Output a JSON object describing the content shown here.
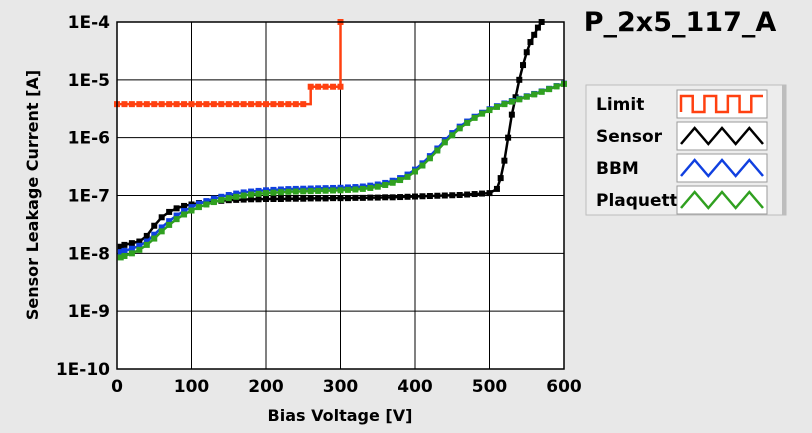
{
  "chart_data": {
    "type": "line",
    "title": "P_2x5_117_A",
    "xlabel": "Bias Voltage [V]",
    "ylabel": "Sensor Leakage Current [A]",
    "xlim": [
      0,
      600
    ],
    "ylim": [
      1e-10,
      0.0001
    ],
    "yscale": "log",
    "grid": true,
    "legend_position": "right",
    "x_ticks": [
      0,
      100,
      200,
      300,
      400,
      500,
      600
    ],
    "x_tick_labels": [
      "0",
      "100",
      "200",
      "300",
      "400",
      "500",
      "600"
    ],
    "y_ticks": [
      1e-10,
      1e-09,
      1e-08,
      1e-07,
      1e-06,
      1e-05,
      0.0001
    ],
    "y_tick_labels": [
      "1E-10",
      "1E-9",
      "1E-8",
      "1E-7",
      "1E-6",
      "1E-5",
      "1E-4"
    ],
    "series": [
      {
        "name": "Limit",
        "color": "#ff4010",
        "step": true,
        "x": [
          0,
          10,
          20,
          30,
          40,
          50,
          60,
          70,
          80,
          90,
          100,
          110,
          120,
          130,
          140,
          150,
          160,
          170,
          180,
          190,
          200,
          210,
          220,
          230,
          240,
          250,
          260,
          270,
          280,
          290,
          300,
          300
        ],
        "y": [
          3.8e-06,
          3.8e-06,
          3.8e-06,
          3.8e-06,
          3.8e-06,
          3.8e-06,
          3.8e-06,
          3.8e-06,
          3.8e-06,
          3.8e-06,
          3.8e-06,
          3.8e-06,
          3.8e-06,
          3.8e-06,
          3.8e-06,
          3.8e-06,
          3.8e-06,
          3.8e-06,
          3.8e-06,
          3.8e-06,
          3.8e-06,
          3.8e-06,
          3.8e-06,
          3.8e-06,
          3.8e-06,
          3.8e-06,
          7.6e-06,
          7.6e-06,
          7.6e-06,
          7.6e-06,
          7.6e-06,
          0.0001
        ]
      },
      {
        "name": "Sensor",
        "color": "#000000",
        "step": false,
        "x": [
          5,
          10,
          20,
          30,
          40,
          50,
          60,
          70,
          80,
          90,
          100,
          110,
          120,
          130,
          140,
          150,
          160,
          170,
          180,
          190,
          200,
          210,
          220,
          230,
          240,
          250,
          260,
          270,
          280,
          290,
          300,
          310,
          320,
          330,
          340,
          350,
          360,
          370,
          380,
          390,
          400,
          410,
          420,
          430,
          440,
          450,
          460,
          470,
          480,
          490,
          500,
          510,
          515,
          520,
          525,
          530,
          535,
          540,
          545,
          550,
          555,
          560,
          565,
          570
        ],
        "y": [
          1.3e-08,
          1.4e-08,
          1.5e-08,
          1.6e-08,
          2e-08,
          3e-08,
          4.2e-08,
          5.2e-08,
          6e-08,
          6.6e-08,
          7e-08,
          7.4e-08,
          7.7e-08,
          7.9e-08,
          8.1e-08,
          8.3e-08,
          8.4e-08,
          8.5e-08,
          8.6e-08,
          8.6e-08,
          8.7e-08,
          8.7e-08,
          8.7e-08,
          8.8e-08,
          8.8e-08,
          8.8e-08,
          8.9e-08,
          8.9e-08,
          8.9e-08,
          9e-08,
          9e-08,
          9e-08,
          9.1e-08,
          9.1e-08,
          9.2e-08,
          9.2e-08,
          9.3e-08,
          9.3e-08,
          9.4e-08,
          9.5e-08,
          9.6e-08,
          9.7e-08,
          9.8e-08,
          9.9e-08,
          1e-07,
          1.01e-07,
          1.02e-07,
          1.04e-07,
          1.06e-07,
          1.08e-07,
          1.1e-07,
          1.3e-07,
          2e-07,
          4e-07,
          1e-06,
          2.5e-06,
          5e-06,
          1e-05,
          1.8e-05,
          3e-05,
          4.5e-05,
          6e-05,
          8e-05,
          0.0001
        ]
      },
      {
        "name": "BBM",
        "color": "#1040e0",
        "step": false,
        "x": [
          5,
          10,
          20,
          30,
          40,
          50,
          60,
          70,
          80,
          90,
          100,
          110,
          120,
          130,
          140,
          150,
          160,
          170,
          180,
          190,
          200,
          210,
          220,
          230,
          240,
          250,
          260,
          270,
          280,
          290,
          300,
          310,
          320,
          330,
          340,
          350,
          360,
          370,
          380,
          390,
          400,
          410,
          420,
          430,
          440,
          450,
          460,
          470,
          480,
          490,
          500,
          510,
          520,
          530,
          540,
          550,
          560,
          570,
          580,
          590,
          600
        ],
        "y": [
          1.05e-08,
          1.1e-08,
          1.2e-08,
          1.35e-08,
          1.6e-08,
          2.1e-08,
          2.8e-08,
          3.6e-08,
          4.5e-08,
          5.4e-08,
          6.3e-08,
          7.2e-08,
          8e-08,
          8.8e-08,
          9.5e-08,
          1.02e-07,
          1.08e-07,
          1.13e-07,
          1.17e-07,
          1.2e-07,
          1.23e-07,
          1.25e-07,
          1.27e-07,
          1.29e-07,
          1.3e-07,
          1.31e-07,
          1.32e-07,
          1.33e-07,
          1.34e-07,
          1.35e-07,
          1.36e-07,
          1.38e-07,
          1.4e-07,
          1.43e-07,
          1.48e-07,
          1.55e-07,
          1.65e-07,
          1.8e-07,
          2e-07,
          2.3e-07,
          2.8e-07,
          3.6e-07,
          4.8e-07,
          6.5e-07,
          9e-07,
          1.2e-06,
          1.55e-06,
          1.9e-06,
          2.3e-06,
          2.7e-06,
          3.1e-06,
          3.5e-06,
          3.9e-06,
          4.3e-06,
          4.7e-06,
          5.2e-06,
          5.7e-06,
          6.3e-06,
          7e-06,
          7.8e-06,
          8.6e-06
        ]
      },
      {
        "name": "Plaquette",
        "color": "#30a020",
        "step": false,
        "x": [
          5,
          10,
          20,
          30,
          40,
          50,
          60,
          70,
          80,
          90,
          100,
          110,
          120,
          130,
          140,
          150,
          160,
          170,
          180,
          190,
          200,
          210,
          220,
          230,
          240,
          250,
          260,
          270,
          280,
          290,
          300,
          310,
          320,
          330,
          340,
          350,
          360,
          370,
          380,
          390,
          400,
          410,
          420,
          430,
          440,
          450,
          460,
          470,
          480,
          490,
          500,
          510,
          520,
          530,
          540,
          550,
          560,
          570,
          580,
          590,
          600
        ],
        "y": [
          8.5e-09,
          9e-09,
          1e-08,
          1.15e-08,
          1.4e-08,
          1.8e-08,
          2.4e-08,
          3.1e-08,
          3.9e-08,
          4.7e-08,
          5.5e-08,
          6.3e-08,
          7e-08,
          7.7e-08,
          8.4e-08,
          9e-08,
          9.5e-08,
          1e-07,
          1.04e-07,
          1.07e-07,
          1.1e-07,
          1.12e-07,
          1.14e-07,
          1.16e-07,
          1.17e-07,
          1.18e-07,
          1.19e-07,
          1.2e-07,
          1.21e-07,
          1.22e-07,
          1.23e-07,
          1.25e-07,
          1.27e-07,
          1.3e-07,
          1.35e-07,
          1.42e-07,
          1.52e-07,
          1.66e-07,
          1.85e-07,
          2.1e-07,
          2.6e-07,
          3.3e-07,
          4.4e-07,
          6e-07,
          8.3e-07,
          1.1e-06,
          1.45e-06,
          1.8e-06,
          2.2e-06,
          2.6e-06,
          3e-06,
          3.4e-06,
          3.8e-06,
          4.2e-06,
          4.6e-06,
          5.1e-06,
          5.6e-06,
          6.2e-06,
          6.9e-06,
          7.7e-06,
          8.5e-06
        ]
      }
    ]
  }
}
